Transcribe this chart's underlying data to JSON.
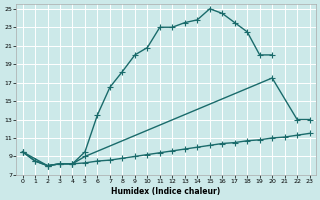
{
  "xlabel": "Humidex (Indice chaleur)",
  "background_color": "#cce9e9",
  "grid_color": "#ffffff",
  "line_color": "#1a6b6b",
  "xlim": [
    -0.5,
    23.5
  ],
  "ylim": [
    7,
    25.5
  ],
  "xticks": [
    0,
    1,
    2,
    3,
    4,
    5,
    6,
    7,
    8,
    9,
    10,
    11,
    12,
    13,
    14,
    15,
    16,
    17,
    18,
    19,
    20,
    21,
    22,
    23
  ],
  "yticks": [
    7,
    9,
    11,
    13,
    15,
    17,
    19,
    21,
    23,
    25
  ],
  "curve1_x": [
    0,
    1,
    2,
    3,
    4,
    5,
    6,
    7,
    8,
    9,
    10,
    11,
    12,
    13,
    14,
    15,
    16,
    17,
    18,
    19,
    20
  ],
  "curve1_y": [
    9.5,
    8.5,
    8.0,
    8.2,
    8.2,
    9.5,
    13.5,
    16.5,
    18.2,
    20.0,
    20.8,
    23.0,
    23.0,
    23.5,
    23.8,
    25.0,
    24.5,
    23.5,
    22.5,
    20.0,
    20.0
  ],
  "curve2_x": [
    0,
    2,
    3,
    4,
    5,
    20,
    22,
    23
  ],
  "curve2_y": [
    9.5,
    8.0,
    8.2,
    8.2,
    9.0,
    17.5,
    13.0,
    13.0
  ],
  "curve3_x": [
    0,
    1,
    2,
    3,
    4,
    5,
    6,
    7,
    8,
    9,
    10,
    11,
    12,
    13,
    14,
    15,
    16,
    17,
    18,
    19,
    20,
    21,
    22,
    23
  ],
  "curve3_y": [
    9.5,
    8.5,
    8.0,
    8.2,
    8.2,
    8.3,
    8.5,
    8.6,
    8.8,
    9.0,
    9.2,
    9.4,
    9.6,
    9.8,
    10.0,
    10.2,
    10.4,
    10.5,
    10.7,
    10.8,
    11.0,
    11.1,
    11.3,
    11.5
  ],
  "markersize": 2.5,
  "linewidth": 1.0
}
